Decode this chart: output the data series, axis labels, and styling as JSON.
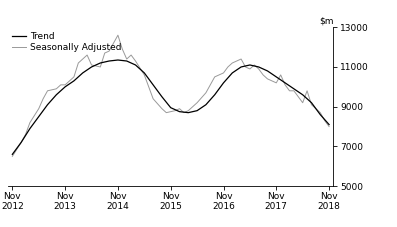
{
  "ylim": [
    5000,
    13000
  ],
  "yticks": [
    5000,
    7000,
    9000,
    11000,
    13000
  ],
  "xtick_labels": [
    "Nov\n2012",
    "Nov\n2013",
    "Nov\n2014",
    "Nov\n2015",
    "Nov\n2016",
    "Nov\n2017",
    "Nov\n2018"
  ],
  "xtick_positions": [
    0,
    12,
    24,
    36,
    48,
    60,
    72
  ],
  "legend_entries": [
    "Trend",
    "Seasonally Adjusted"
  ],
  "trend_color": "#000000",
  "seasonal_color": "#999999",
  "trend_linewidth": 0.9,
  "seasonal_linewidth": 0.7,
  "trend_data_x": [
    0,
    2,
    4,
    6,
    8,
    10,
    12,
    14,
    16,
    18,
    20,
    22,
    24,
    26,
    28,
    30,
    32,
    34,
    36,
    38,
    40,
    42,
    44,
    46,
    48,
    50,
    52,
    54,
    56,
    58,
    60,
    62,
    64,
    66,
    68,
    70,
    72
  ],
  "trend_data_y": [
    6600,
    7200,
    7900,
    8500,
    9100,
    9600,
    10000,
    10300,
    10700,
    11000,
    11200,
    11300,
    11350,
    11300,
    11100,
    10700,
    10100,
    9500,
    8950,
    8750,
    8700,
    8800,
    9100,
    9600,
    10200,
    10700,
    11000,
    11100,
    11000,
    10800,
    10500,
    10200,
    9900,
    9600,
    9200,
    8600,
    8100
  ],
  "seasonal_data_x": [
    0,
    2,
    3,
    4,
    6,
    7,
    8,
    10,
    11,
    12,
    14,
    15,
    16,
    17,
    18,
    20,
    21,
    22,
    24,
    25,
    26,
    27,
    28,
    30,
    31,
    32,
    34,
    35,
    36,
    37,
    38,
    39,
    40,
    41,
    42,
    44,
    45,
    46,
    48,
    49,
    50,
    52,
    53,
    54,
    55,
    56,
    57,
    58,
    60,
    61,
    62,
    63,
    64,
    66,
    67,
    68,
    70,
    71,
    72
  ],
  "seasonal_data_y": [
    6500,
    7200,
    7600,
    8200,
    8900,
    9400,
    9800,
    9900,
    10100,
    10100,
    10500,
    11200,
    11400,
    11600,
    11100,
    11000,
    11700,
    11800,
    12600,
    11900,
    11400,
    11600,
    11300,
    10600,
    10000,
    9400,
    8900,
    8700,
    8750,
    8800,
    8900,
    8700,
    8800,
    9000,
    9200,
    9700,
    10100,
    10500,
    10700,
    11000,
    11200,
    11400,
    11000,
    10900,
    11100,
    10900,
    10600,
    10400,
    10200,
    10600,
    10100,
    9800,
    9800,
    9200,
    9800,
    9100,
    8700,
    8300,
    8000
  ],
  "font_size": 6.5,
  "background_color": "#ffffff"
}
